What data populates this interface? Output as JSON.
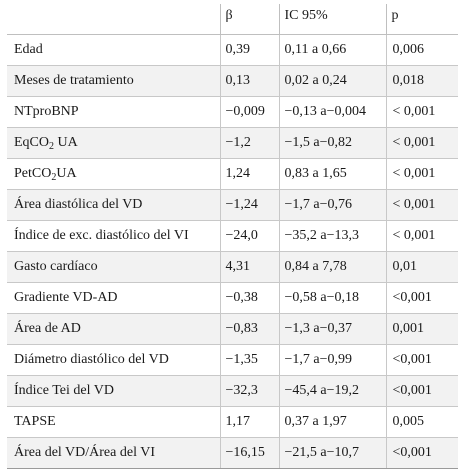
{
  "table": {
    "headers": [
      "",
      "β",
      "IC 95%",
      "p"
    ],
    "rows": [
      {
        "label": "Edad",
        "label_sub": "",
        "label_post": "",
        "beta": "0,39",
        "ci": "0,11 a 0,66",
        "p": "0,006"
      },
      {
        "label": "Meses de tratamiento",
        "label_sub": "",
        "label_post": "",
        "beta": "0,13",
        "ci": "0,02 a 0,24",
        "p": "0,018"
      },
      {
        "label": "NTproBNP",
        "label_sub": "",
        "label_post": "",
        "beta": "−0,009",
        "ci": "−0,13 a−0,004",
        "p": "< 0,001"
      },
      {
        "label": "EqCO",
        "label_sub": "2",
        "label_post": " UA",
        "beta": "−1,2",
        "ci": "−1,5 a−0,82",
        "p": "< 0,001"
      },
      {
        "label": "PetCO",
        "label_sub": "2",
        "label_post": "UA",
        "beta": "1,24",
        "ci": "0,83 a 1,65",
        "p": "< 0,001"
      },
      {
        "label": "Área diastólica del VD",
        "label_sub": "",
        "label_post": "",
        "beta": "−1,24",
        "ci": "−1,7 a−0,76",
        "p": "< 0,001"
      },
      {
        "label": "Índice de exc. diastólico del VI",
        "label_sub": "",
        "label_post": "",
        "beta": "−24,0",
        "ci": "−35,2 a−13,3",
        "p": "< 0,001"
      },
      {
        "label": "Gasto cardíaco",
        "label_sub": "",
        "label_post": "",
        "beta": "4,31",
        "ci": "0,84 a 7,78",
        "p": "0,01"
      },
      {
        "label": "Gradiente VD-AD",
        "label_sub": "",
        "label_post": "",
        "beta": "−0,38",
        "ci": "−0,58 a−0,18",
        "p": "<0,001"
      },
      {
        "label": "Área de AD",
        "label_sub": "",
        "label_post": "",
        "beta": "−0,83",
        "ci": "−1,3 a−0,37",
        "p": "0,001"
      },
      {
        "label": "Diámetro diastólico del VD",
        "label_sub": "",
        "label_post": "",
        "beta": "−1,35",
        "ci": "−1,7 a−0,99",
        "p": "<0,001"
      },
      {
        "label": "Índice Tei del VD",
        "label_sub": "",
        "label_post": "",
        "beta": "−32,3",
        "ci": "−45,4 a−19,2",
        "p": "<0,001"
      },
      {
        "label": "TAPSE",
        "label_sub": "",
        "label_post": "",
        "beta": "1,17",
        "ci": "0,37 a 1,97",
        "p": "0,005"
      },
      {
        "label": "Área del VD/Área del VI",
        "label_sub": "",
        "label_post": "",
        "beta": "−16,15",
        "ci": "−21,5 a−10,7",
        "p": "<0,001"
      }
    ]
  }
}
